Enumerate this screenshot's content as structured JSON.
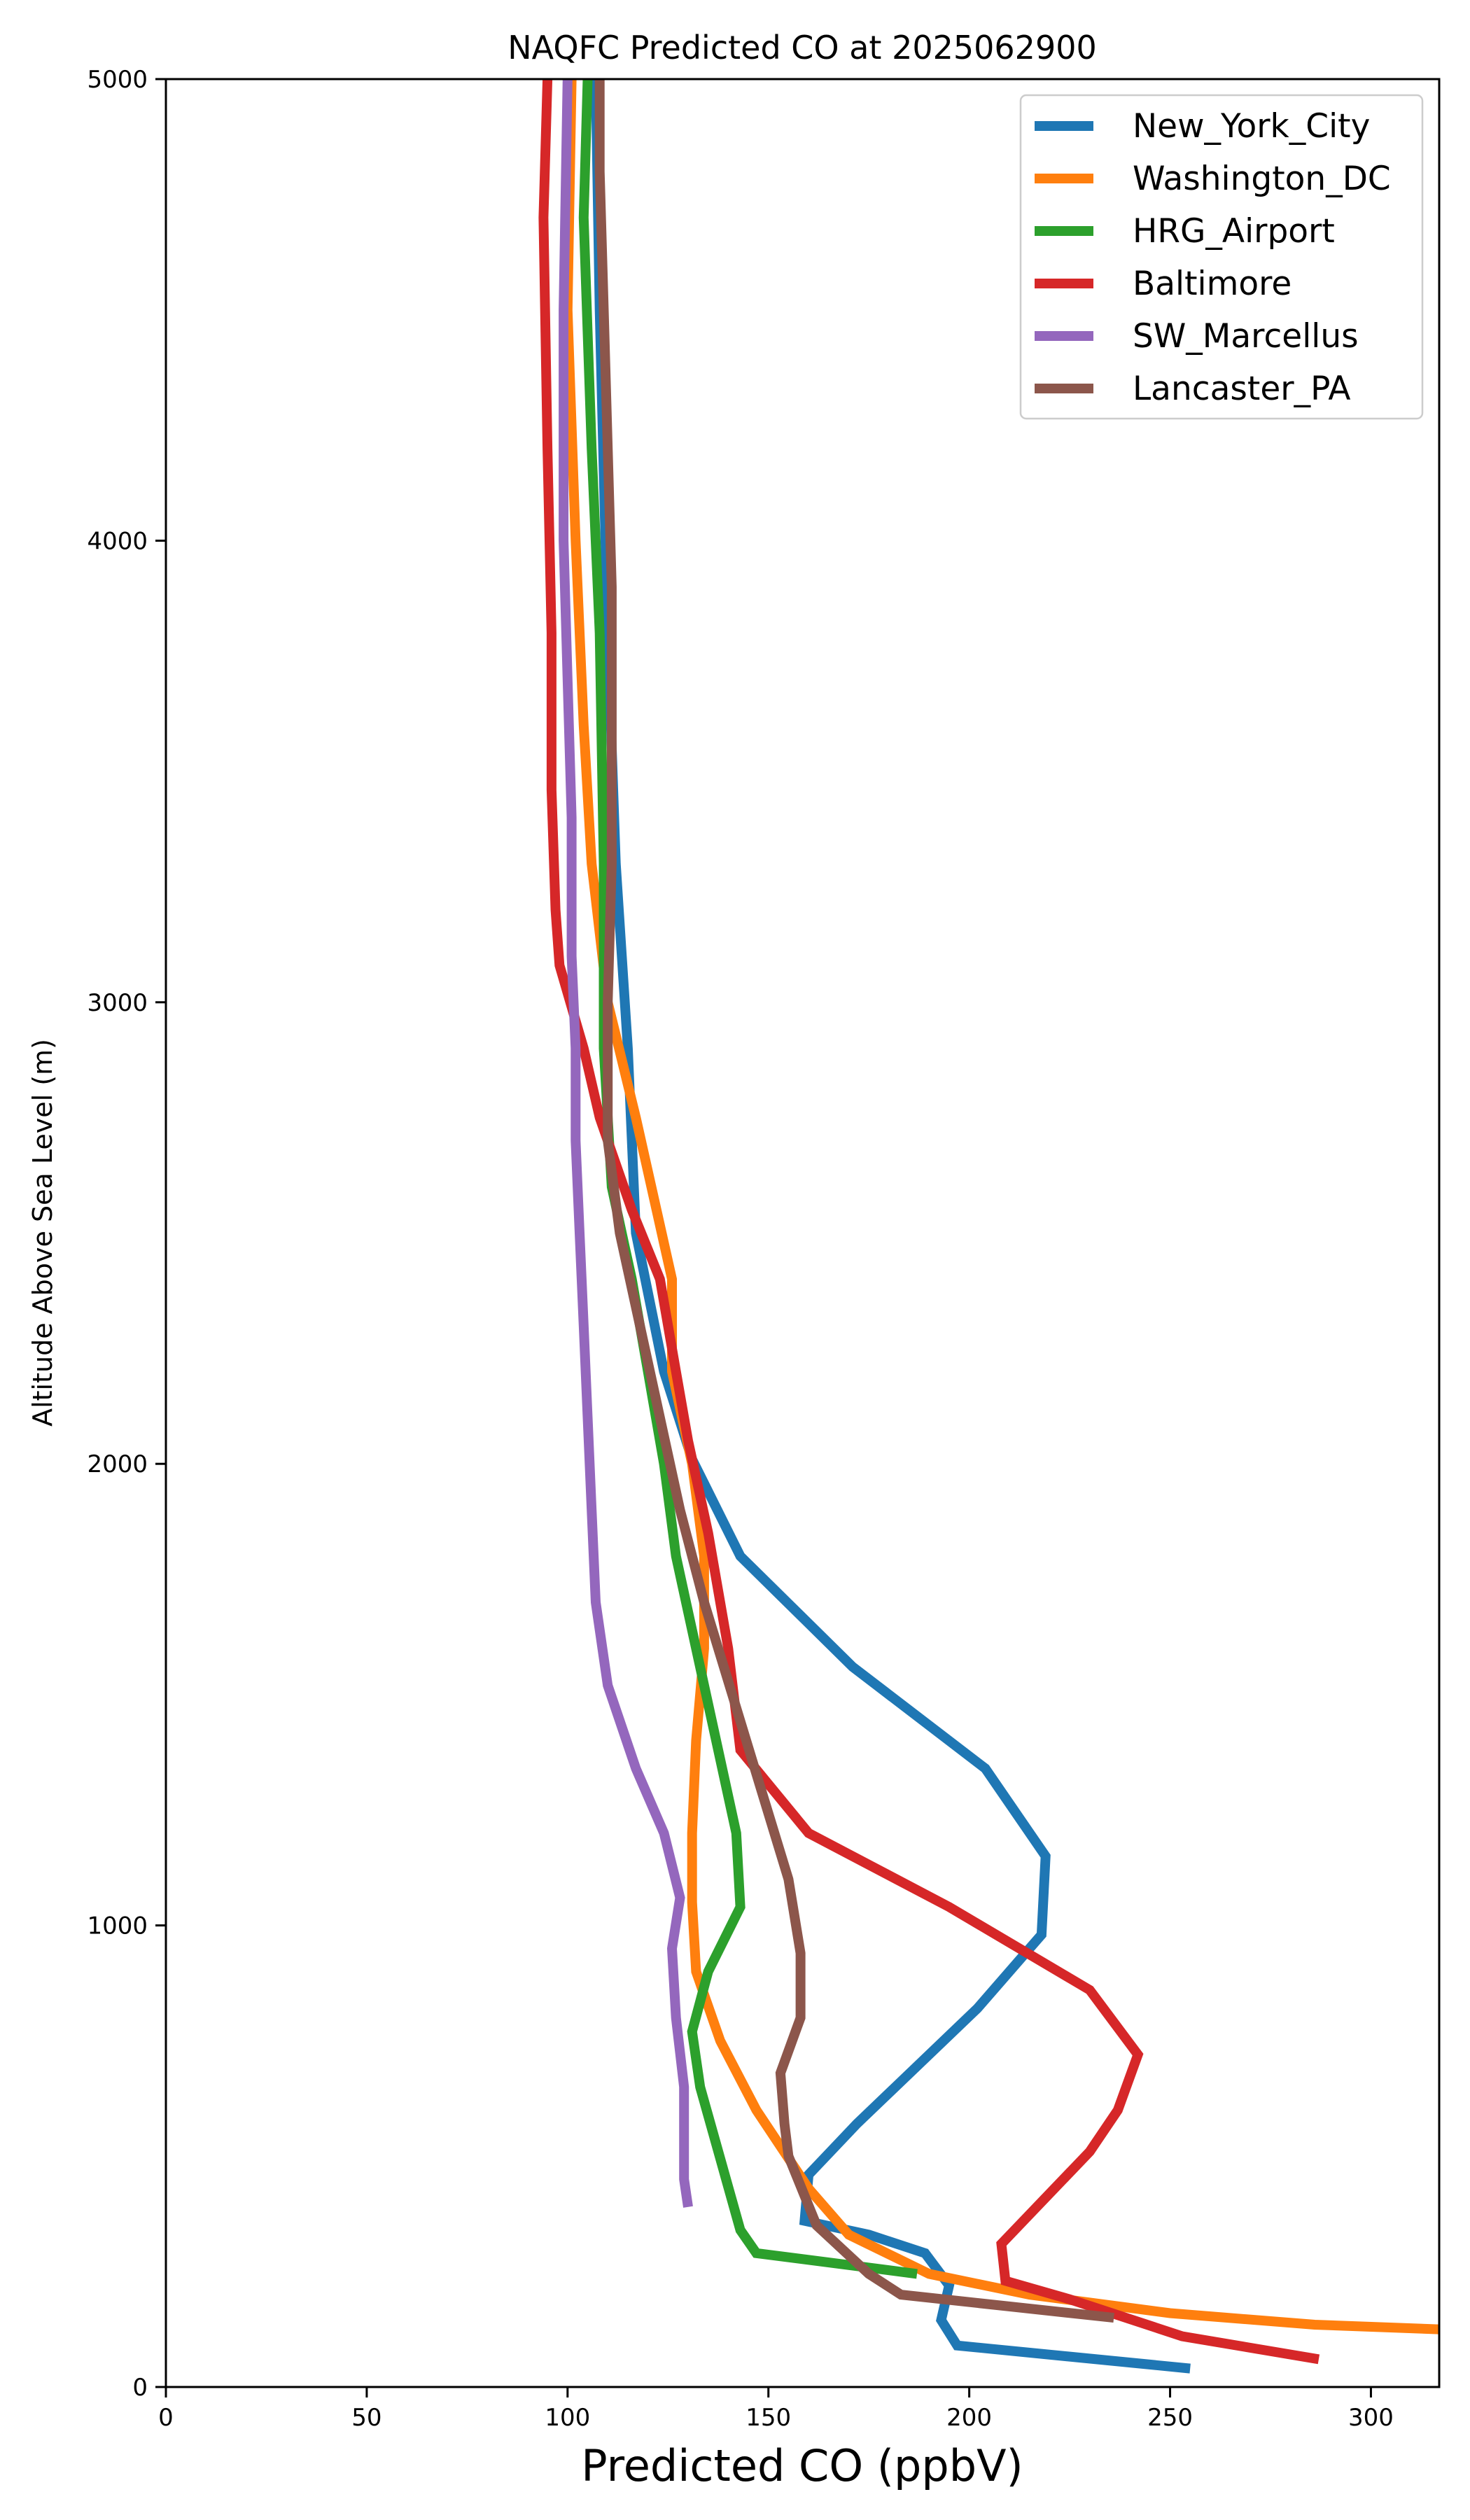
{
  "chart_data": {
    "type": "line",
    "title": "NAQFC Predicted CO at 2025062900",
    "xlabel": "Predicted CO (ppbV)",
    "ylabel": "Altitude Above Sea Level (m)",
    "xlim": [
      0,
      317
    ],
    "ylim": [
      0,
      5000
    ],
    "x_ticks": [
      "0",
      "50",
      "100",
      "150",
      "200",
      "250",
      "300"
    ],
    "y_ticks": [
      "0",
      "1000",
      "2000",
      "3000",
      "4000",
      "5000"
    ],
    "grid": false,
    "legend_position": "top-right",
    "series": [
      {
        "name": "New_York_City",
        "color": "#1f77b4",
        "points": [
          [
            255,
            40
          ],
          [
            197,
            90
          ],
          [
            193,
            145
          ],
          [
            195,
            220
          ],
          [
            189,
            290
          ],
          [
            175,
            330
          ],
          [
            159,
            360
          ],
          [
            160,
            460
          ],
          [
            172,
            570
          ],
          [
            202,
            820
          ],
          [
            218,
            980
          ],
          [
            219,
            1150
          ],
          [
            204,
            1340
          ],
          [
            171,
            1560
          ],
          [
            143,
            1800
          ],
          [
            131,
            2010
          ],
          [
            124,
            2200
          ],
          [
            117,
            2500
          ],
          [
            115,
            2900
          ],
          [
            112,
            3300
          ],
          [
            110,
            3800
          ],
          [
            108,
            4500
          ],
          [
            107,
            5000
          ]
        ]
      },
      {
        "name": "Washington_DC",
        "color": "#ff7f0e",
        "points": [
          [
            317,
            125
          ],
          [
            286,
            135
          ],
          [
            250,
            160
          ],
          [
            215,
            200
          ],
          [
            190,
            245
          ],
          [
            170,
            330
          ],
          [
            160,
            430
          ],
          [
            147,
            600
          ],
          [
            138,
            750
          ],
          [
            132,
            900
          ],
          [
            131,
            1050
          ],
          [
            131,
            1200
          ],
          [
            132,
            1400
          ],
          [
            134,
            1600
          ],
          [
            134,
            1800
          ],
          [
            131,
            2000
          ],
          [
            126,
            2200
          ],
          [
            126,
            2400
          ],
          [
            117,
            2750
          ],
          [
            110,
            3000
          ],
          [
            106,
            3300
          ],
          [
            104,
            3600
          ],
          [
            102,
            4000
          ],
          [
            100,
            4500
          ],
          [
            101,
            5000
          ]
        ]
      },
      {
        "name": "HRG_Airport",
        "color": "#2ca02c",
        "points": [
          [
            187,
            245
          ],
          [
            147,
            290
          ],
          [
            143,
            340
          ],
          [
            133,
            650
          ],
          [
            131,
            770
          ],
          [
            135,
            900
          ],
          [
            143,
            1040
          ],
          [
            142,
            1200
          ],
          [
            137,
            1400
          ],
          [
            132,
            1600
          ],
          [
            127,
            1800
          ],
          [
            124,
            2000
          ],
          [
            120,
            2200
          ],
          [
            116,
            2400
          ],
          [
            111,
            2600
          ],
          [
            109,
            2900
          ],
          [
            109,
            3300
          ],
          [
            108,
            3800
          ],
          [
            106,
            4200
          ],
          [
            104,
            4700
          ],
          [
            105,
            5000
          ]
        ]
      },
      {
        "name": "Baltimore",
        "color": "#d62728",
        "points": [
          [
            287,
            60
          ],
          [
            253,
            110
          ],
          [
            225,
            190
          ],
          [
            209,
            230
          ],
          [
            208,
            310
          ],
          [
            230,
            510
          ],
          [
            237,
            600
          ],
          [
            242,
            720
          ],
          [
            230,
            860
          ],
          [
            195,
            1040
          ],
          [
            160,
            1200
          ],
          [
            143,
            1380
          ],
          [
            140,
            1600
          ],
          [
            135,
            1850
          ],
          [
            130,
            2050
          ],
          [
            127,
            2200
          ],
          [
            123,
            2400
          ],
          [
            116,
            2550
          ],
          [
            108,
            2750
          ],
          [
            104,
            2900
          ],
          [
            98,
            3080
          ],
          [
            97,
            3200
          ],
          [
            96,
            3460
          ],
          [
            96,
            3800
          ],
          [
            95,
            4200
          ],
          [
            94,
            4700
          ],
          [
            95,
            5000
          ]
        ]
      },
      {
        "name": "SW_Marcellus",
        "color": "#9467bd",
        "points": [
          [
            130,
            390
          ],
          [
            129,
            450
          ],
          [
            129,
            650
          ],
          [
            127,
            800
          ],
          [
            126,
            950
          ],
          [
            128,
            1060
          ],
          [
            124,
            1200
          ],
          [
            117,
            1340
          ],
          [
            110,
            1520
          ],
          [
            107,
            1700
          ],
          [
            106,
            1900
          ],
          [
            105,
            2100
          ],
          [
            104,
            2300
          ],
          [
            103,
            2500
          ],
          [
            102,
            2700
          ],
          [
            102,
            2900
          ],
          [
            101,
            3100
          ],
          [
            101,
            3400
          ],
          [
            100,
            3700
          ],
          [
            99,
            4000
          ],
          [
            99,
            4500
          ],
          [
            100,
            5000
          ]
        ]
      },
      {
        "name": "Lancaster_PA",
        "color": "#8c564b",
        "points": [
          [
            236,
            150
          ],
          [
            183,
            200
          ],
          [
            175,
            245
          ],
          [
            162,
            350
          ],
          [
            155,
            500
          ],
          [
            154,
            570
          ],
          [
            153,
            680
          ],
          [
            158,
            800
          ],
          [
            158,
            940
          ],
          [
            155,
            1100
          ],
          [
            148,
            1300
          ],
          [
            141,
            1500
          ],
          [
            134,
            1700
          ],
          [
            128,
            1900
          ],
          [
            123,
            2100
          ],
          [
            118,
            2300
          ],
          [
            113,
            2500
          ],
          [
            110,
            2700
          ],
          [
            110,
            3000
          ],
          [
            111,
            3300
          ],
          [
            111,
            3600
          ],
          [
            111,
            3900
          ],
          [
            110,
            4200
          ],
          [
            109,
            4500
          ],
          [
            108,
            4800
          ],
          [
            108,
            5000
          ]
        ]
      }
    ]
  }
}
